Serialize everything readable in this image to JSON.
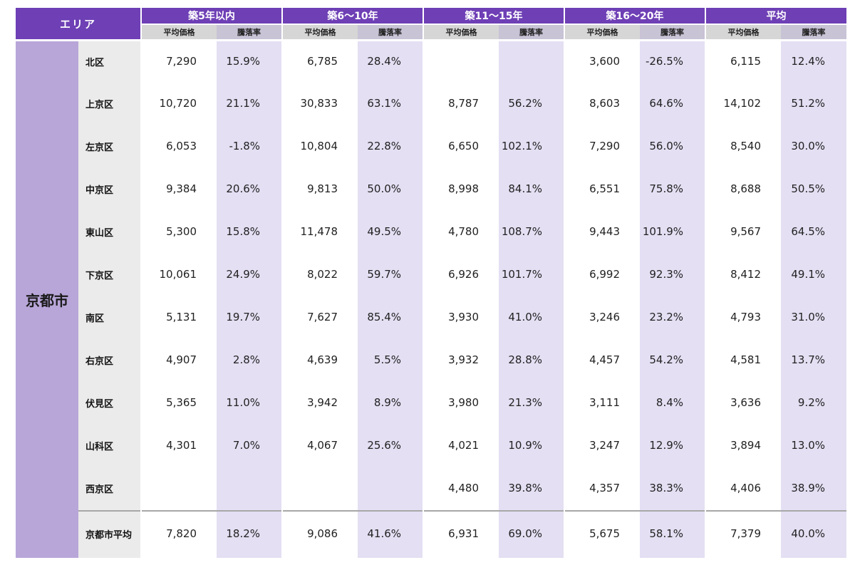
{
  "header": {
    "area_label": "エリア",
    "groups": [
      "築5年以内",
      "築6～10年",
      "築11～15年",
      "築16～20年",
      "平均"
    ],
    "sub_price": "平均価格",
    "sub_rate": "騰落率"
  },
  "city": "京都市",
  "rows": [
    {
      "ward": "北区",
      "cells": [
        [
          "7,290",
          "15.9%"
        ],
        [
          "6,785",
          "28.4%"
        ],
        [
          "",
          ""
        ],
        [
          "3,600",
          "-26.5%"
        ],
        [
          "6,115",
          "12.4%"
        ]
      ]
    },
    {
      "ward": "上京区",
      "cells": [
        [
          "10,720",
          "21.1%"
        ],
        [
          "30,833",
          "63.1%"
        ],
        [
          "8,787",
          "56.2%"
        ],
        [
          "8,603",
          "64.6%"
        ],
        [
          "14,102",
          "51.2%"
        ]
      ]
    },
    {
      "ward": "左京区",
      "cells": [
        [
          "6,053",
          "-1.8%"
        ],
        [
          "10,804",
          "22.8%"
        ],
        [
          "6,650",
          "102.1%"
        ],
        [
          "7,290",
          "56.0%"
        ],
        [
          "8,540",
          "30.0%"
        ]
      ]
    },
    {
      "ward": "中京区",
      "cells": [
        [
          "9,384",
          "20.6%"
        ],
        [
          "9,813",
          "50.0%"
        ],
        [
          "8,998",
          "84.1%"
        ],
        [
          "6,551",
          "75.8%"
        ],
        [
          "8,688",
          "50.5%"
        ]
      ]
    },
    {
      "ward": "東山区",
      "cells": [
        [
          "5,300",
          "15.8%"
        ],
        [
          "11,478",
          "49.5%"
        ],
        [
          "4,780",
          "108.7%"
        ],
        [
          "9,443",
          "101.9%"
        ],
        [
          "9,567",
          "64.5%"
        ]
      ]
    },
    {
      "ward": "下京区",
      "cells": [
        [
          "10,061",
          "24.9%"
        ],
        [
          "8,022",
          "59.7%"
        ],
        [
          "6,926",
          "101.7%"
        ],
        [
          "6,992",
          "92.3%"
        ],
        [
          "8,412",
          "49.1%"
        ]
      ]
    },
    {
      "ward": "南区",
      "cells": [
        [
          "5,131",
          "19.7%"
        ],
        [
          "7,627",
          "85.4%"
        ],
        [
          "3,930",
          "41.0%"
        ],
        [
          "3,246",
          "23.2%"
        ],
        [
          "4,793",
          "31.0%"
        ]
      ]
    },
    {
      "ward": "右京区",
      "cells": [
        [
          "4,907",
          "2.8%"
        ],
        [
          "4,639",
          "5.5%"
        ],
        [
          "3,932",
          "28.8%"
        ],
        [
          "4,457",
          "54.2%"
        ],
        [
          "4,581",
          "13.7%"
        ]
      ]
    },
    {
      "ward": "伏見区",
      "cells": [
        [
          "5,365",
          "11.0%"
        ],
        [
          "3,942",
          "8.9%"
        ],
        [
          "3,980",
          "21.3%"
        ],
        [
          "3,111",
          "8.4%"
        ],
        [
          "3,636",
          "9.2%"
        ]
      ]
    },
    {
      "ward": "山科区",
      "cells": [
        [
          "4,301",
          "7.0%"
        ],
        [
          "4,067",
          "25.6%"
        ],
        [
          "4,021",
          "10.9%"
        ],
        [
          "3,247",
          "12.9%"
        ],
        [
          "3,894",
          "13.0%"
        ]
      ]
    },
    {
      "ward": "西京区",
      "cells": [
        [
          "",
          ""
        ],
        [
          "",
          ""
        ],
        [
          "4,480",
          "39.8%"
        ],
        [
          "4,357",
          "38.3%"
        ],
        [
          "4,406",
          "38.9%"
        ]
      ]
    }
  ],
  "average_row": {
    "ward": "京都市平均",
    "cells": [
      [
        "7,820",
        "18.2%"
      ],
      [
        "9,086",
        "41.6%"
      ],
      [
        "6,931",
        "69.0%"
      ],
      [
        "5,675",
        "58.1%"
      ],
      [
        "7,379",
        "40.0%"
      ]
    ]
  }
}
